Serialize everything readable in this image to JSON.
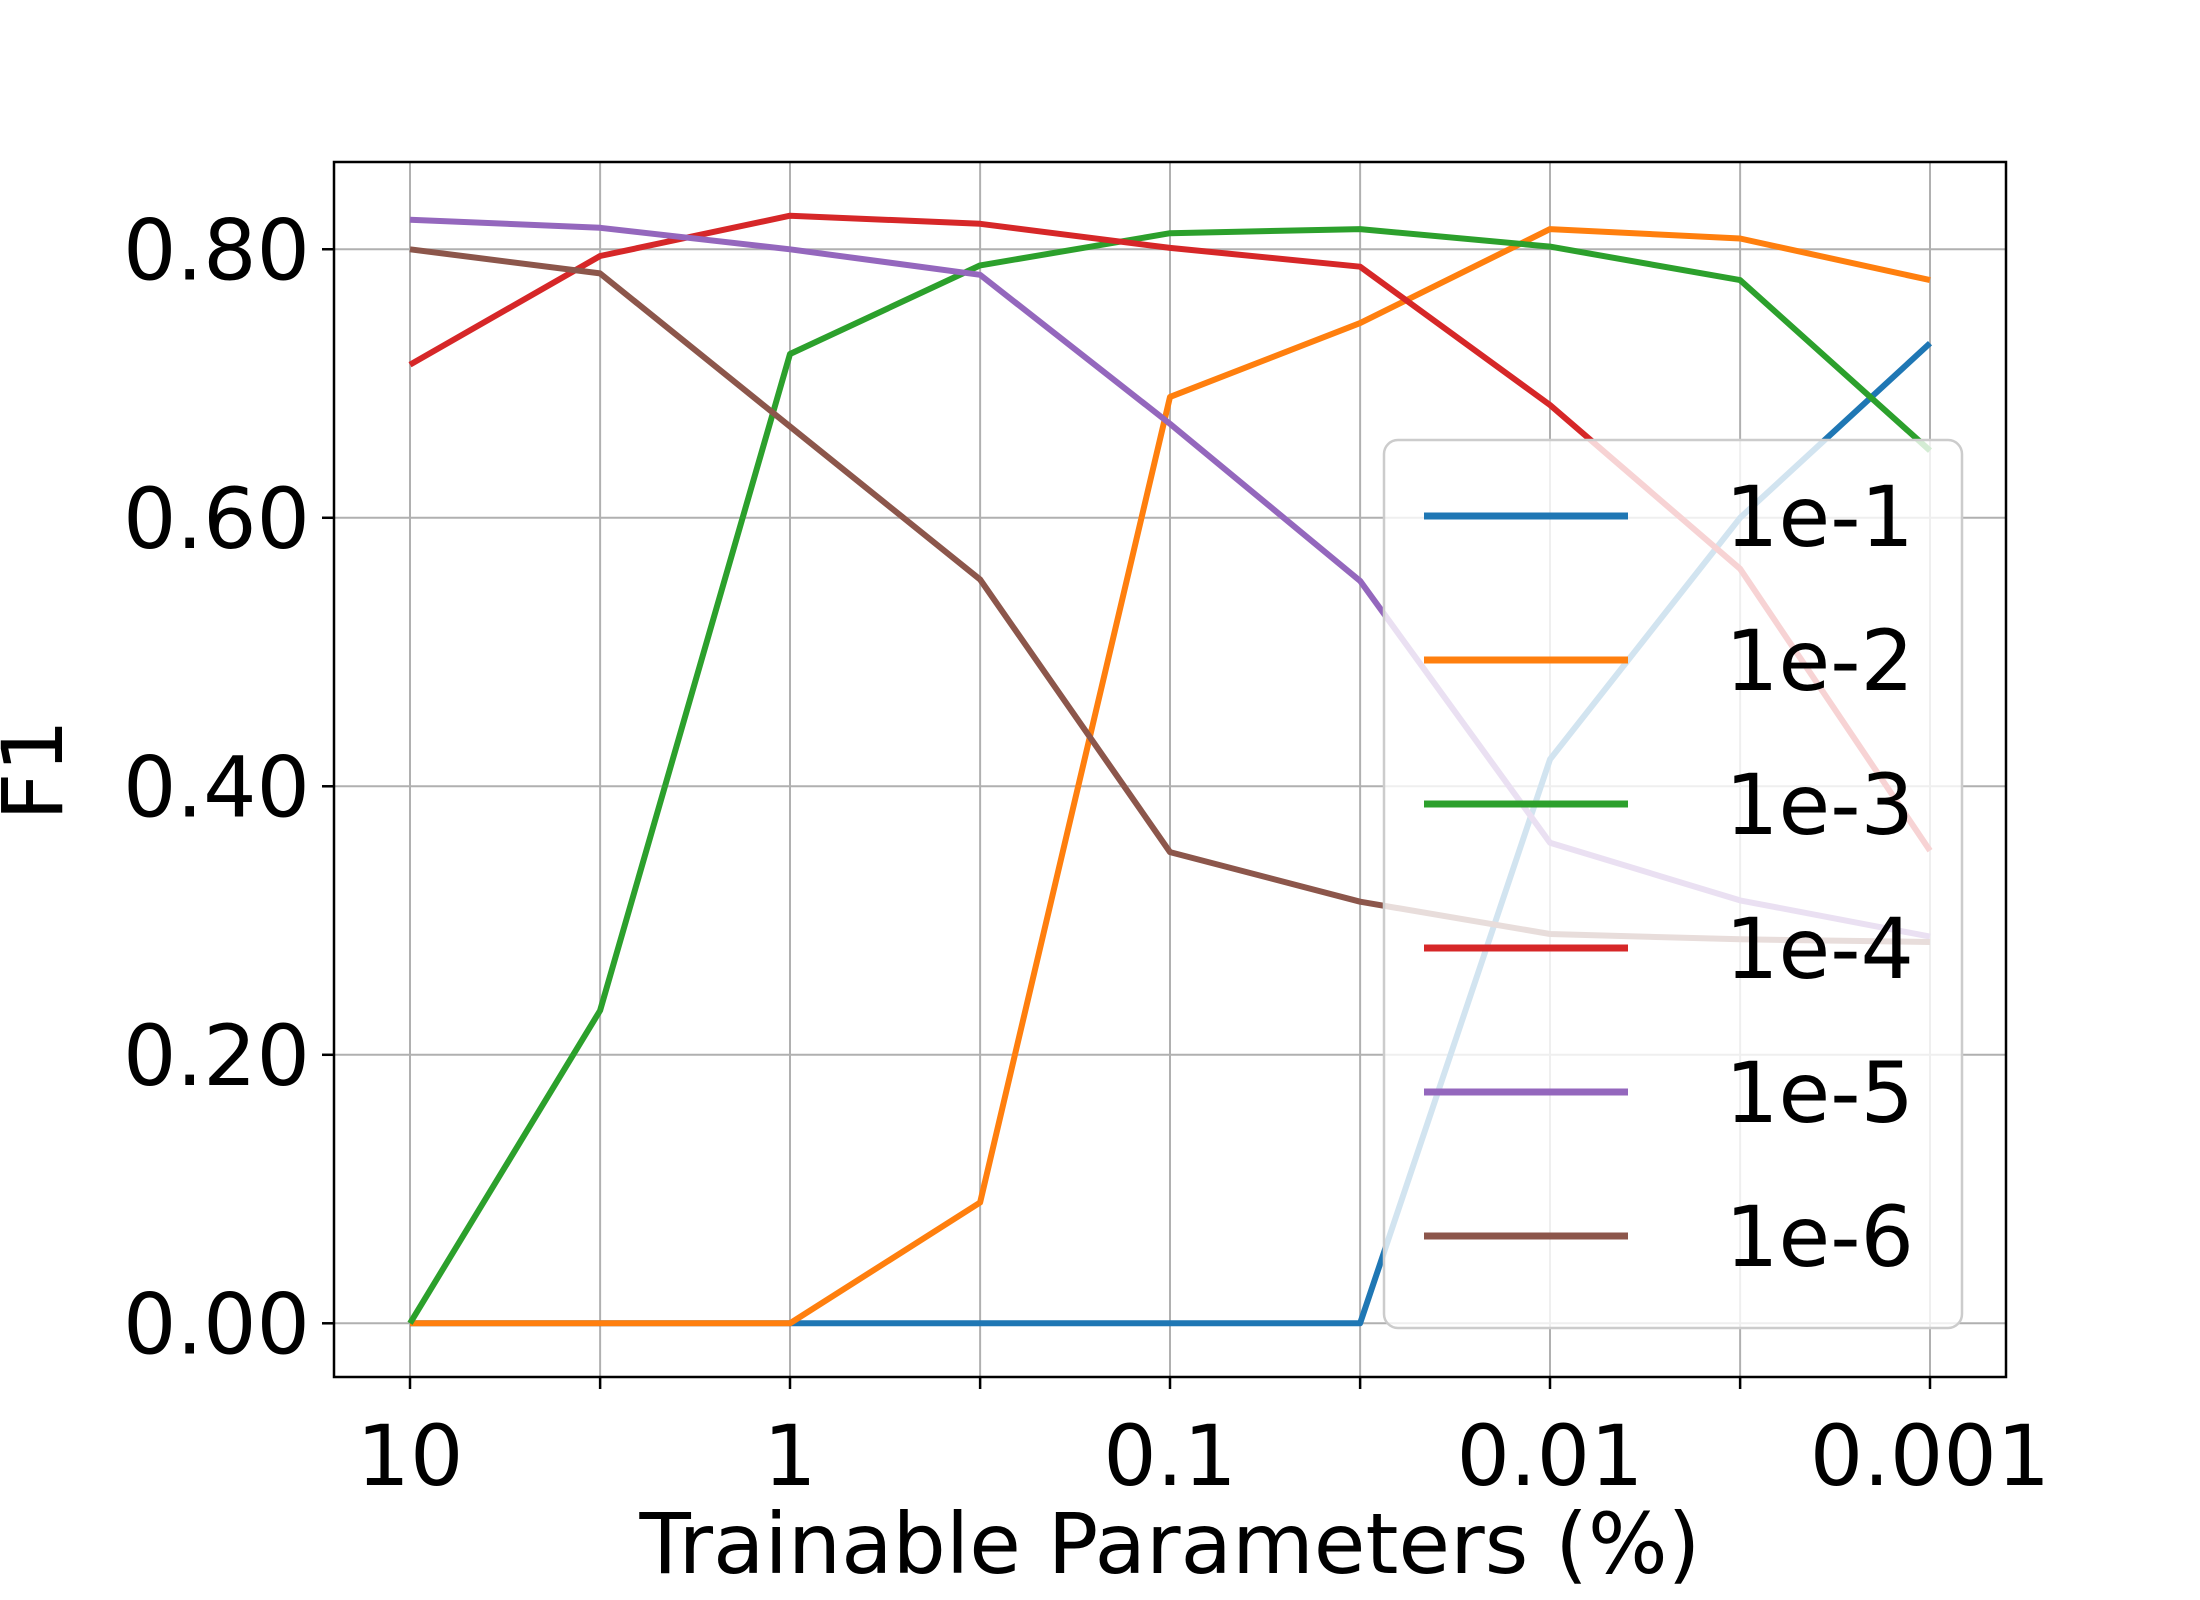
{
  "chart_data": {
    "type": "line",
    "xlabel": "Trainable Parameters (%)",
    "ylabel": "F1",
    "x_scale": "log",
    "x_reversed": true,
    "x": [
      10,
      3.16,
      1,
      0.316,
      0.1,
      0.0316,
      0.01,
      0.00316,
      0.001
    ],
    "x_ticks": [
      10,
      3.16,
      1,
      0.316,
      0.1,
      0.0316,
      0.01,
      0.00316,
      0.001
    ],
    "x_tick_labels": [
      "10",
      "",
      "1",
      "",
      "0.1",
      "",
      "0.01",
      "",
      "0.001"
    ],
    "ylim": [
      -0.04,
      0.865
    ],
    "y_ticks": [
      0.0,
      0.2,
      0.4,
      0.6,
      0.8
    ],
    "y_tick_labels": [
      "0.00",
      "0.20",
      "0.40",
      "0.60",
      "0.80"
    ],
    "grid": true,
    "legend_position": "right",
    "series": [
      {
        "name": "1e-1",
        "color": "#1f77b4",
        "values": [
          0.0,
          0.0,
          0.0,
          0.0,
          0.0,
          0.0,
          0.42,
          0.6,
          0.73
        ]
      },
      {
        "name": "1e-2",
        "color": "#ff7f0e",
        "values": [
          0.0,
          0.0,
          0.0,
          0.09,
          0.69,
          0.745,
          0.815,
          0.808,
          0.777
        ]
      },
      {
        "name": "1e-3",
        "color": "#2ca02c",
        "values": [
          0.0,
          0.233,
          0.722,
          0.788,
          0.812,
          0.815,
          0.802,
          0.777,
          0.65
        ]
      },
      {
        "name": "1e-4",
        "color": "#d62728",
        "values": [
          0.714,
          0.795,
          0.825,
          0.819,
          0.801,
          0.787,
          0.684,
          0.562,
          0.352
        ]
      },
      {
        "name": "1e-5",
        "color": "#9467bd",
        "values": [
          0.822,
          0.816,
          0.8,
          0.781,
          0.67,
          0.553,
          0.358,
          0.315,
          0.288
        ]
      },
      {
        "name": "1e-6",
        "color": "#8c564b",
        "values": [
          0.8,
          0.782,
          0.668,
          0.554,
          0.351,
          0.314,
          0.29,
          0.286,
          0.284
        ]
      }
    ]
  }
}
